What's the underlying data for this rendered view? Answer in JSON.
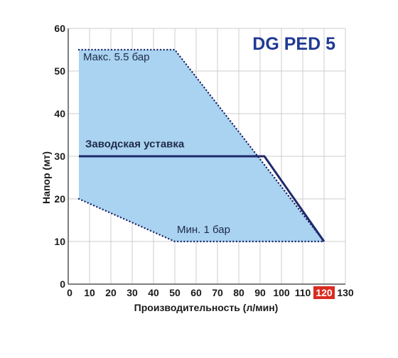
{
  "chart_data": {
    "type": "area",
    "title": "DG PED 5",
    "xlabel": "Производительность (л/мин)",
    "ylabel": "Напор (мт)",
    "xlim": [
      0,
      130
    ],
    "ylim": [
      0,
      60
    ],
    "x_ticks": [
      "0",
      "10",
      "20",
      "30",
      "40",
      "50",
      "60",
      "70",
      "80",
      "90",
      "100",
      "110",
      "120",
      "130"
    ],
    "x_ticks_values": [
      0,
      10,
      20,
      30,
      40,
      50,
      60,
      70,
      80,
      90,
      100,
      110,
      120,
      130
    ],
    "y_ticks": [
      "0",
      "10",
      "20",
      "30",
      "40",
      "50",
      "60"
    ],
    "y_ticks_values": [
      0,
      10,
      20,
      30,
      40,
      50,
      60
    ],
    "highlighted_x_tick": "120",
    "grid": true,
    "operating_area": {
      "polygon": [
        [
          5,
          55
        ],
        [
          50,
          55
        ],
        [
          120,
          10
        ],
        [
          50,
          10
        ],
        [
          5,
          20
        ]
      ],
      "fill_color": "#a9d3f0"
    },
    "series": [
      {
        "name": "Макс. 5.5 бар",
        "style": "dotted",
        "x": [
          5,
          50,
          120
        ],
        "y": [
          55,
          55,
          10
        ]
      },
      {
        "name": "Мин. 1 бар",
        "style": "dotted",
        "x": [
          5,
          50,
          120
        ],
        "y": [
          20,
          10,
          10
        ]
      },
      {
        "name": "Заводская уставка",
        "style": "solid",
        "x": [
          5,
          92,
          120
        ],
        "y": [
          30,
          30,
          10
        ]
      }
    ],
    "annotations": [
      {
        "text": "Макс. 5.5 бар",
        "x": 7,
        "y": 52.5
      },
      {
        "text": "Заводская уставка",
        "x": 8,
        "y": 32.1
      },
      {
        "text": "Мин. 1 бар",
        "x": 51,
        "y": 12
      }
    ],
    "colors": {
      "area": "#a9d3f0",
      "line": "#1f2a6b",
      "title": "#1f3a93",
      "highlight": "#d92b20"
    }
  }
}
